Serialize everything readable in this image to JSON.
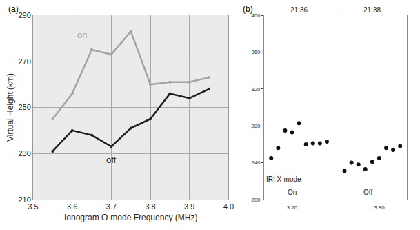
{
  "chart_data": [
    {
      "type": "line",
      "panel_label": "(a)",
      "x_label": "Ionogram O-mode Frequency (MHz)",
      "y_label": "Virtual Height (km)",
      "x": [
        3.55,
        3.6,
        3.65,
        3.7,
        3.75,
        3.8,
        3.85,
        3.9,
        3.95
      ],
      "series": [
        {
          "name": "on",
          "color": "#a3a3a3",
          "marker": "circle",
          "line_style": "solid",
          "values": [
            245,
            256,
            275,
            273,
            283,
            260,
            261,
            261,
            263
          ]
        },
        {
          "name": "off",
          "color": "#1e1e1e",
          "marker": "circle",
          "line_style": "solid",
          "values": [
            231,
            240,
            238,
            233,
            241,
            245,
            256,
            254,
            258
          ]
        }
      ],
      "xlim": [
        3.5,
        4
      ],
      "xticks": [
        3.5,
        3.6,
        3.7,
        3.8,
        3.9,
        {
          "value": 4,
          "label": "4.0"
        }
      ],
      "ylim": [
        210,
        290
      ],
      "yticks": [
        210,
        230,
        250,
        270,
        290
      ],
      "grid": true
    },
    {
      "type": "scatter",
      "panel_label": "(b)",
      "color": "#111111",
      "marker": "circle",
      "ylim": [
        200,
        400
      ],
      "yticks": [
        200,
        240,
        280,
        320,
        360,
        400
      ],
      "panels": [
        {
          "title": "21:36",
          "x": [
            3.55,
            3.6,
            3.65,
            3.7,
            3.75,
            3.8,
            3.85,
            3.9,
            3.95
          ],
          "values": [
            245,
            256,
            275,
            273,
            283,
            260,
            261,
            261,
            263
          ],
          "xlim": [
            3.5,
            4
          ],
          "xticks": [
            {
              "value": 3.7,
              "label": "3.70"
            }
          ],
          "annotations": [
            {
              "text": "IRI X-mode",
              "x": 3.64,
              "y": 222
            },
            {
              "text": "On",
              "x": 3.7,
              "y": 208
            }
          ]
        },
        {
          "title": "21:38",
          "x": [
            3.55,
            3.6,
            3.65,
            3.7,
            3.75,
            3.8,
            3.85,
            3.9,
            3.95
          ],
          "values": [
            231,
            240,
            238,
            233,
            241,
            245,
            256,
            254,
            258
          ],
          "xlim": [
            3.5,
            4
          ],
          "xticks": [
            {
              "value": 3.8,
              "label": "3.80"
            }
          ],
          "annotations": [
            {
              "text": "Off",
              "x": 3.72,
              "y": 208
            }
          ]
        }
      ]
    }
  ]
}
